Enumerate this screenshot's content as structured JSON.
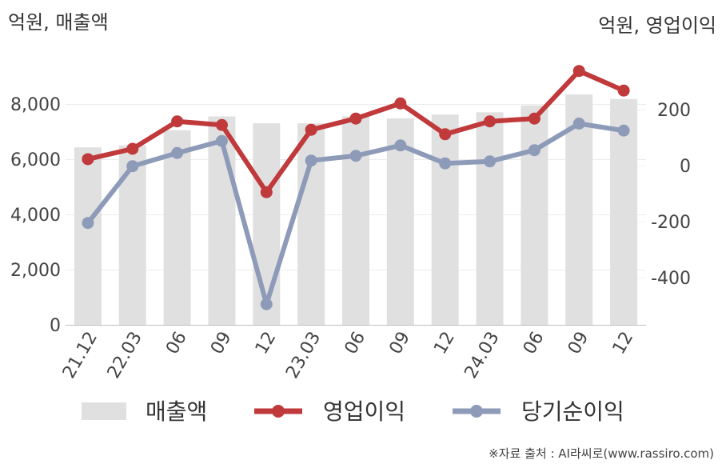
{
  "chart_data": {
    "type": "bar+line",
    "left_axis_unit": "억원, 매출액",
    "right_axis_unit": "억원, 영업이익",
    "categories": [
      "21.12",
      "22.03",
      "06",
      "09",
      "12",
      "23.03",
      "06",
      "09",
      "12",
      "24.03",
      "06",
      "09",
      "12"
    ],
    "left_axis": {
      "ylim": [
        0,
        9500
      ],
      "ticks": [
        0,
        2000,
        4000,
        6000,
        8000
      ],
      "tick_labels": [
        "0",
        "2,000",
        "4,000",
        "6,000",
        "8,000"
      ]
    },
    "right_axis": {
      "ylim": [
        -580,
        350
      ],
      "ticks": [
        -400,
        -200,
        0,
        200
      ],
      "tick_labels": [
        "-400",
        "-200",
        "0",
        "200"
      ]
    },
    "series": [
      {
        "name": "매출액",
        "type": "bar",
        "axis": "left",
        "color": "#e0e0e0",
        "values": [
          6430,
          6500,
          7050,
          7550,
          7300,
          7300,
          7550,
          7480,
          7620,
          7700,
          7950,
          8350,
          8180
        ]
      },
      {
        "name": "영업이익",
        "type": "line",
        "axis": "right",
        "color": "#c0393b",
        "values": [
          23,
          60,
          158,
          145,
          -95,
          128,
          168,
          222,
          112,
          158,
          168,
          338,
          268
        ]
      },
      {
        "name": "당기순이익",
        "type": "line",
        "axis": "right",
        "color": "#8e9bb8",
        "values": [
          -205,
          -2,
          45,
          88,
          -495,
          18,
          35,
          72,
          8,
          15,
          55,
          150,
          125
        ]
      }
    ],
    "legend_position": "bottom",
    "grid": true
  },
  "source": "※자료 출처 : AI라씨로(www.rassiro.com)"
}
